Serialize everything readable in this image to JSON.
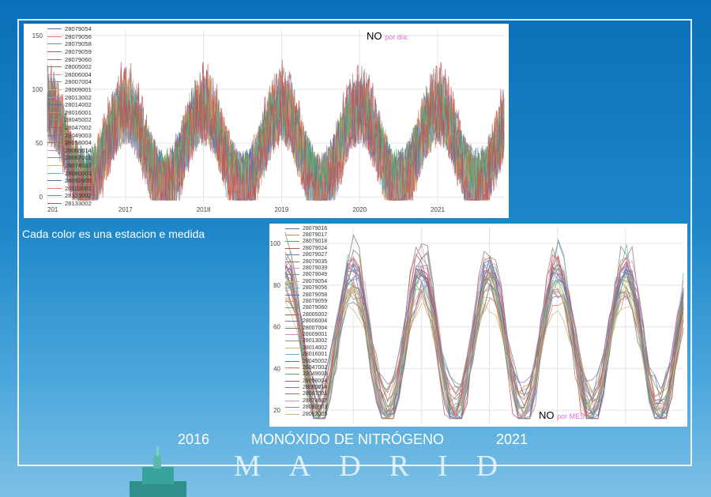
{
  "caption": "Cada color es una estacion e medida",
  "footer": {
    "year_start": "2016",
    "title": "MONÓXIDO  DE NITRÓGENO",
    "year_end": "2021"
  },
  "city": "MADRID",
  "chart_data": [
    {
      "type": "line",
      "title_main": "NO",
      "title_sub": "por día:",
      "y_ticks": [
        0,
        50,
        100,
        150
      ],
      "ylim": [
        -5,
        155
      ],
      "x_ticks": [
        "201",
        "2017",
        "2018",
        "2019",
        "2020",
        "2021"
      ],
      "x_tick_pos": [
        2016.0,
        2017.0,
        2018.0,
        2019.0,
        2020.0,
        2021.0
      ],
      "xlim": [
        2016.0,
        2021.85
      ],
      "grid": true,
      "legend_placement": "upper-left",
      "series_names": [
        "28079054",
        "28079056",
        "28079058",
        "28079059",
        "28079060",
        "28005002",
        "28006004",
        "28007004",
        "28009001",
        "28013002",
        "28014002",
        "28016001",
        "28045002",
        "28047002",
        "28049003",
        "28058004",
        "28065014",
        "28067001",
        "28074007",
        "28080003",
        "28092005",
        "28102001",
        "28123002",
        "28133002"
      ],
      "approx_seasonal_profile": {
        "winter_peak": 80,
        "summer_trough": 10
      }
    },
    {
      "type": "line",
      "title_main": "NO",
      "title_sub": "por MES:",
      "y_ticks": [
        20,
        40,
        60,
        80,
        100
      ],
      "ylim": [
        14,
        108
      ],
      "x_ticks": [],
      "xlim": [
        2016.0,
        2021.85
      ],
      "grid": true,
      "legend_placement": "upper-left",
      "series_names": [
        "28079016",
        "28079017",
        "28079018",
        "28079024",
        "28079027",
        "28079035",
        "28079039",
        "28079049",
        "28079054",
        "28079056",
        "28079058",
        "28079059",
        "28079060",
        "28005002",
        "28006004",
        "28007004",
        "28009001",
        "28013002",
        "28014002",
        "28016001",
        "28045002",
        "28047002",
        "28049003",
        "28058004",
        "28065014",
        "28067001",
        "28074007",
        "28080003",
        "28092005"
      ],
      "approx_seasonal_profile": {
        "winter_peak": 85,
        "summer_trough": 20
      }
    }
  ],
  "colors": {
    "palette": [
      "#4c72b0",
      "#dd8452",
      "#55a868",
      "#c44e52",
      "#8172b3",
      "#937860",
      "#da8bc3",
      "#8c8c8c",
      "#ccb974",
      "#64b5cd"
    ]
  }
}
